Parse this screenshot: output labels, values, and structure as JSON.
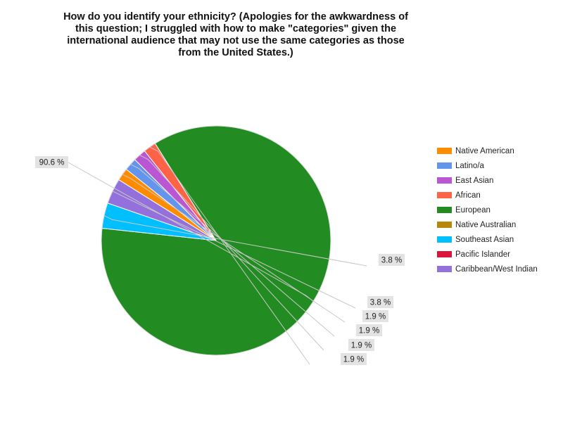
{
  "chart_data": {
    "type": "pie",
    "title_lines": [
      "How do you identify your ethnicity? (Apologies for the awkwardness of",
      "this question; I struggled with how to make \"categories\" given the",
      "international audience that may not use the same categories as those",
      "from the United States.)"
    ],
    "legend_position": "right",
    "categories": [
      "Native American",
      "Latino/a",
      "East Asian",
      "African",
      "European",
      "Native Australian",
      "Southeast Asian",
      "Pacific Islander",
      "Caribbean/West Indian"
    ],
    "colors": [
      "#ff8c00",
      "#6495ed",
      "#ba55d3",
      "#ff6347",
      "#228b22",
      "#b8860b",
      "#00bfff",
      "#dc143c",
      "#9370db"
    ],
    "values": [
      1.9,
      1.9,
      1.9,
      1.9,
      90.6,
      0,
      3.8,
      0,
      3.8
    ],
    "data_labels": [
      "1.9 %",
      "1.9 %",
      "1.9 %",
      "1.9 %",
      "90.6 %",
      "",
      "3.8 %",
      "",
      "3.8 %"
    ]
  }
}
